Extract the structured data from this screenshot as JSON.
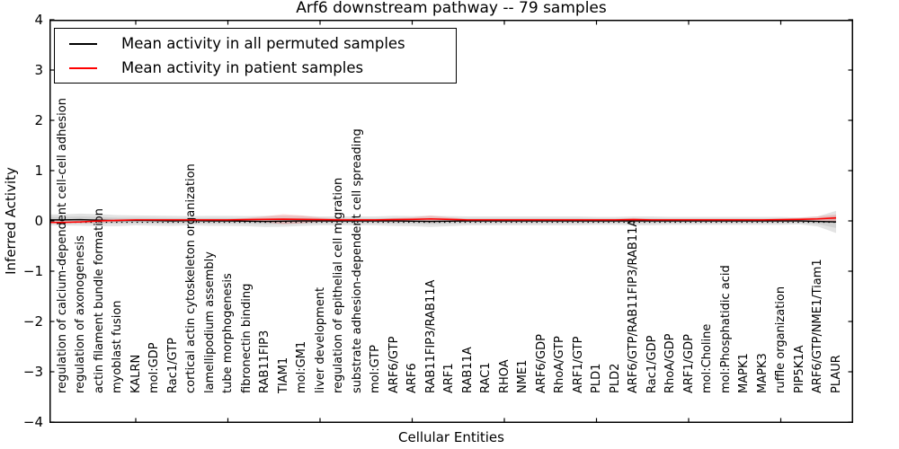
{
  "figure": {
    "title": "Arf6 downstream pathway -- 79 samples",
    "xlabel": "Cellular Entities",
    "ylabel": "Inferred Activity"
  },
  "legend": {
    "position": "upper left",
    "entries": [
      {
        "label": "Mean activity in all permuted samples",
        "color": "#000000"
      },
      {
        "label": "Mean activity in patient samples",
        "color": "#ff0000"
      }
    ]
  },
  "chart_data": {
    "type": "line",
    "title": "Arf6 downstream pathway -- 79 samples",
    "xlabel": "Cellular Entities",
    "ylabel": "Inferred Activity",
    "ylim": [
      -4,
      4
    ],
    "yticks": [
      "4",
      "3",
      "2",
      "1",
      "0",
      "−1",
      "−2",
      "−3",
      "−4"
    ],
    "grid": false,
    "x_major_tick_indices": [
      4,
      9,
      14,
      19,
      24,
      29,
      34,
      39
    ],
    "categories": [
      "regulation of calcium-dependent cell-cell adhesion",
      "regulation of axonogenesis",
      "actin filament bundle formation",
      "myoblast fusion",
      "KALRN",
      "mol:GDP",
      "Rac1/GTP",
      "cortical actin cytoskeleton organization",
      "lamellipodium assembly",
      "tube morphogenesis",
      "fibronectin binding",
      "RAB11FIP3",
      "TIAM1",
      "mol:GM1",
      "liver development",
      "regulation of epithelial cell migration",
      "substrate adhesion-dependent cell spreading",
      "mol:GTP",
      "ARF6/GTP",
      "ARF6",
      "RAB11FIP3/RAB11A",
      "ARF1",
      "RAB11A",
      "RAC1",
      "RHOA",
      "NME1",
      "ARF6/GDP",
      "RhoA/GTP",
      "ARF1/GTP",
      "PLD1",
      "PLD2",
      "ARF6/GTP/RAB11FIP3/RAB11A",
      "Rac1/GDP",
      "RhoA/GDP",
      "ARF1/GDP",
      "mol:Choline",
      "mol:Phosphatidic acid",
      "MAPK1",
      "MAPK3",
      "ruffle organization",
      "PIP5K1A",
      "ARF6/GTP/NME1/Tiam1",
      "PLAUR"
    ],
    "series": [
      {
        "name": "Mean activity in all permuted samples",
        "color": "#000000",
        "values": [
          0.02,
          0.025,
          0.015,
          0.005,
          0.01,
          0.005,
          0.0,
          0.005,
          0.0,
          0.0,
          -0.005,
          -0.01,
          -0.005,
          0.0,
          0.0,
          0.0,
          0.0,
          0.0,
          0.0,
          -0.005,
          -0.01,
          -0.005,
          0.0,
          0.0,
          0.0,
          0.0,
          0.0,
          0.0,
          0.0,
          0.0,
          0.0,
          0.0,
          0.0,
          0.0,
          0.0,
          0.0,
          0.0,
          0.0,
          0.0,
          0.0,
          0.0,
          -0.01,
          -0.02
        ]
      },
      {
        "name": "Mean activity in patient samples",
        "color": "#ff0000",
        "values": [
          -0.03,
          -0.02,
          0.0,
          0.01,
          0.02,
          0.02,
          0.02,
          0.02,
          0.02,
          0.02,
          0.025,
          0.03,
          0.035,
          0.03,
          0.025,
          0.02,
          0.02,
          0.02,
          0.025,
          0.03,
          0.04,
          0.03,
          0.02,
          0.02,
          0.02,
          0.02,
          0.02,
          0.02,
          0.02,
          0.02,
          0.02,
          0.025,
          0.02,
          0.02,
          0.02,
          0.02,
          0.02,
          0.02,
          0.02,
          0.025,
          0.03,
          0.04,
          0.06
        ]
      }
    ],
    "bands": [
      {
        "name": "permuted-samples-spread",
        "series_index": 0,
        "color": "rgba(0,0,0,0.11)",
        "half_widths": [
          0.11,
          0.12,
          0.12,
          0.11,
          0.1,
          0.1,
          0.1,
          0.09,
          0.1,
          0.1,
          0.1,
          0.11,
          0.11,
          0.1,
          0.09,
          0.09,
          0.09,
          0.09,
          0.1,
          0.1,
          0.11,
          0.1,
          0.09,
          0.09,
          0.09,
          0.09,
          0.09,
          0.09,
          0.09,
          0.08,
          0.08,
          0.09,
          0.09,
          0.08,
          0.08,
          0.08,
          0.08,
          0.08,
          0.08,
          0.08,
          0.07,
          0.1,
          0.22
        ]
      },
      {
        "name": "patient-samples-spread",
        "series_index": 1,
        "color": "rgba(255,0,0,0.15)",
        "half_widths": [
          0.01,
          0.03,
          0.04,
          0.03,
          0.02,
          0.02,
          0.02,
          0.02,
          0.02,
          0.02,
          0.03,
          0.06,
          0.1,
          0.08,
          0.04,
          0.03,
          0.02,
          0.02,
          0.03,
          0.04,
          0.07,
          0.04,
          0.02,
          0.02,
          0.02,
          0.02,
          0.02,
          0.02,
          0.02,
          0.02,
          0.02,
          0.03,
          0.02,
          0.02,
          0.02,
          0.02,
          0.02,
          0.02,
          0.02,
          0.02,
          0.03,
          0.05,
          0.07
        ]
      }
    ]
  }
}
